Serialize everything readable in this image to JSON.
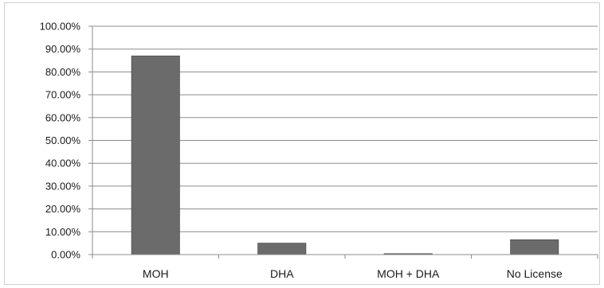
{
  "chart_data": {
    "type": "bar",
    "categories": [
      "MOH",
      "DHA",
      "MOH + DHA",
      "No License"
    ],
    "values": [
      87.0,
      5.0,
      0.4,
      6.5
    ],
    "ylim": [
      0,
      100
    ],
    "y_ticks": [
      0,
      10,
      20,
      30,
      40,
      50,
      60,
      70,
      80,
      90,
      100
    ],
    "y_tick_labels": [
      "0.00%",
      "10.00%",
      "20.00%",
      "30.00%",
      "40.00%",
      "50.00%",
      "60.00%",
      "70.00%",
      "80.00%",
      "90.00%",
      "100.00%"
    ],
    "title": "",
    "xlabel": "",
    "ylabel": "",
    "grid": true,
    "legend": "none",
    "bar_color": "#6b6b6b"
  }
}
